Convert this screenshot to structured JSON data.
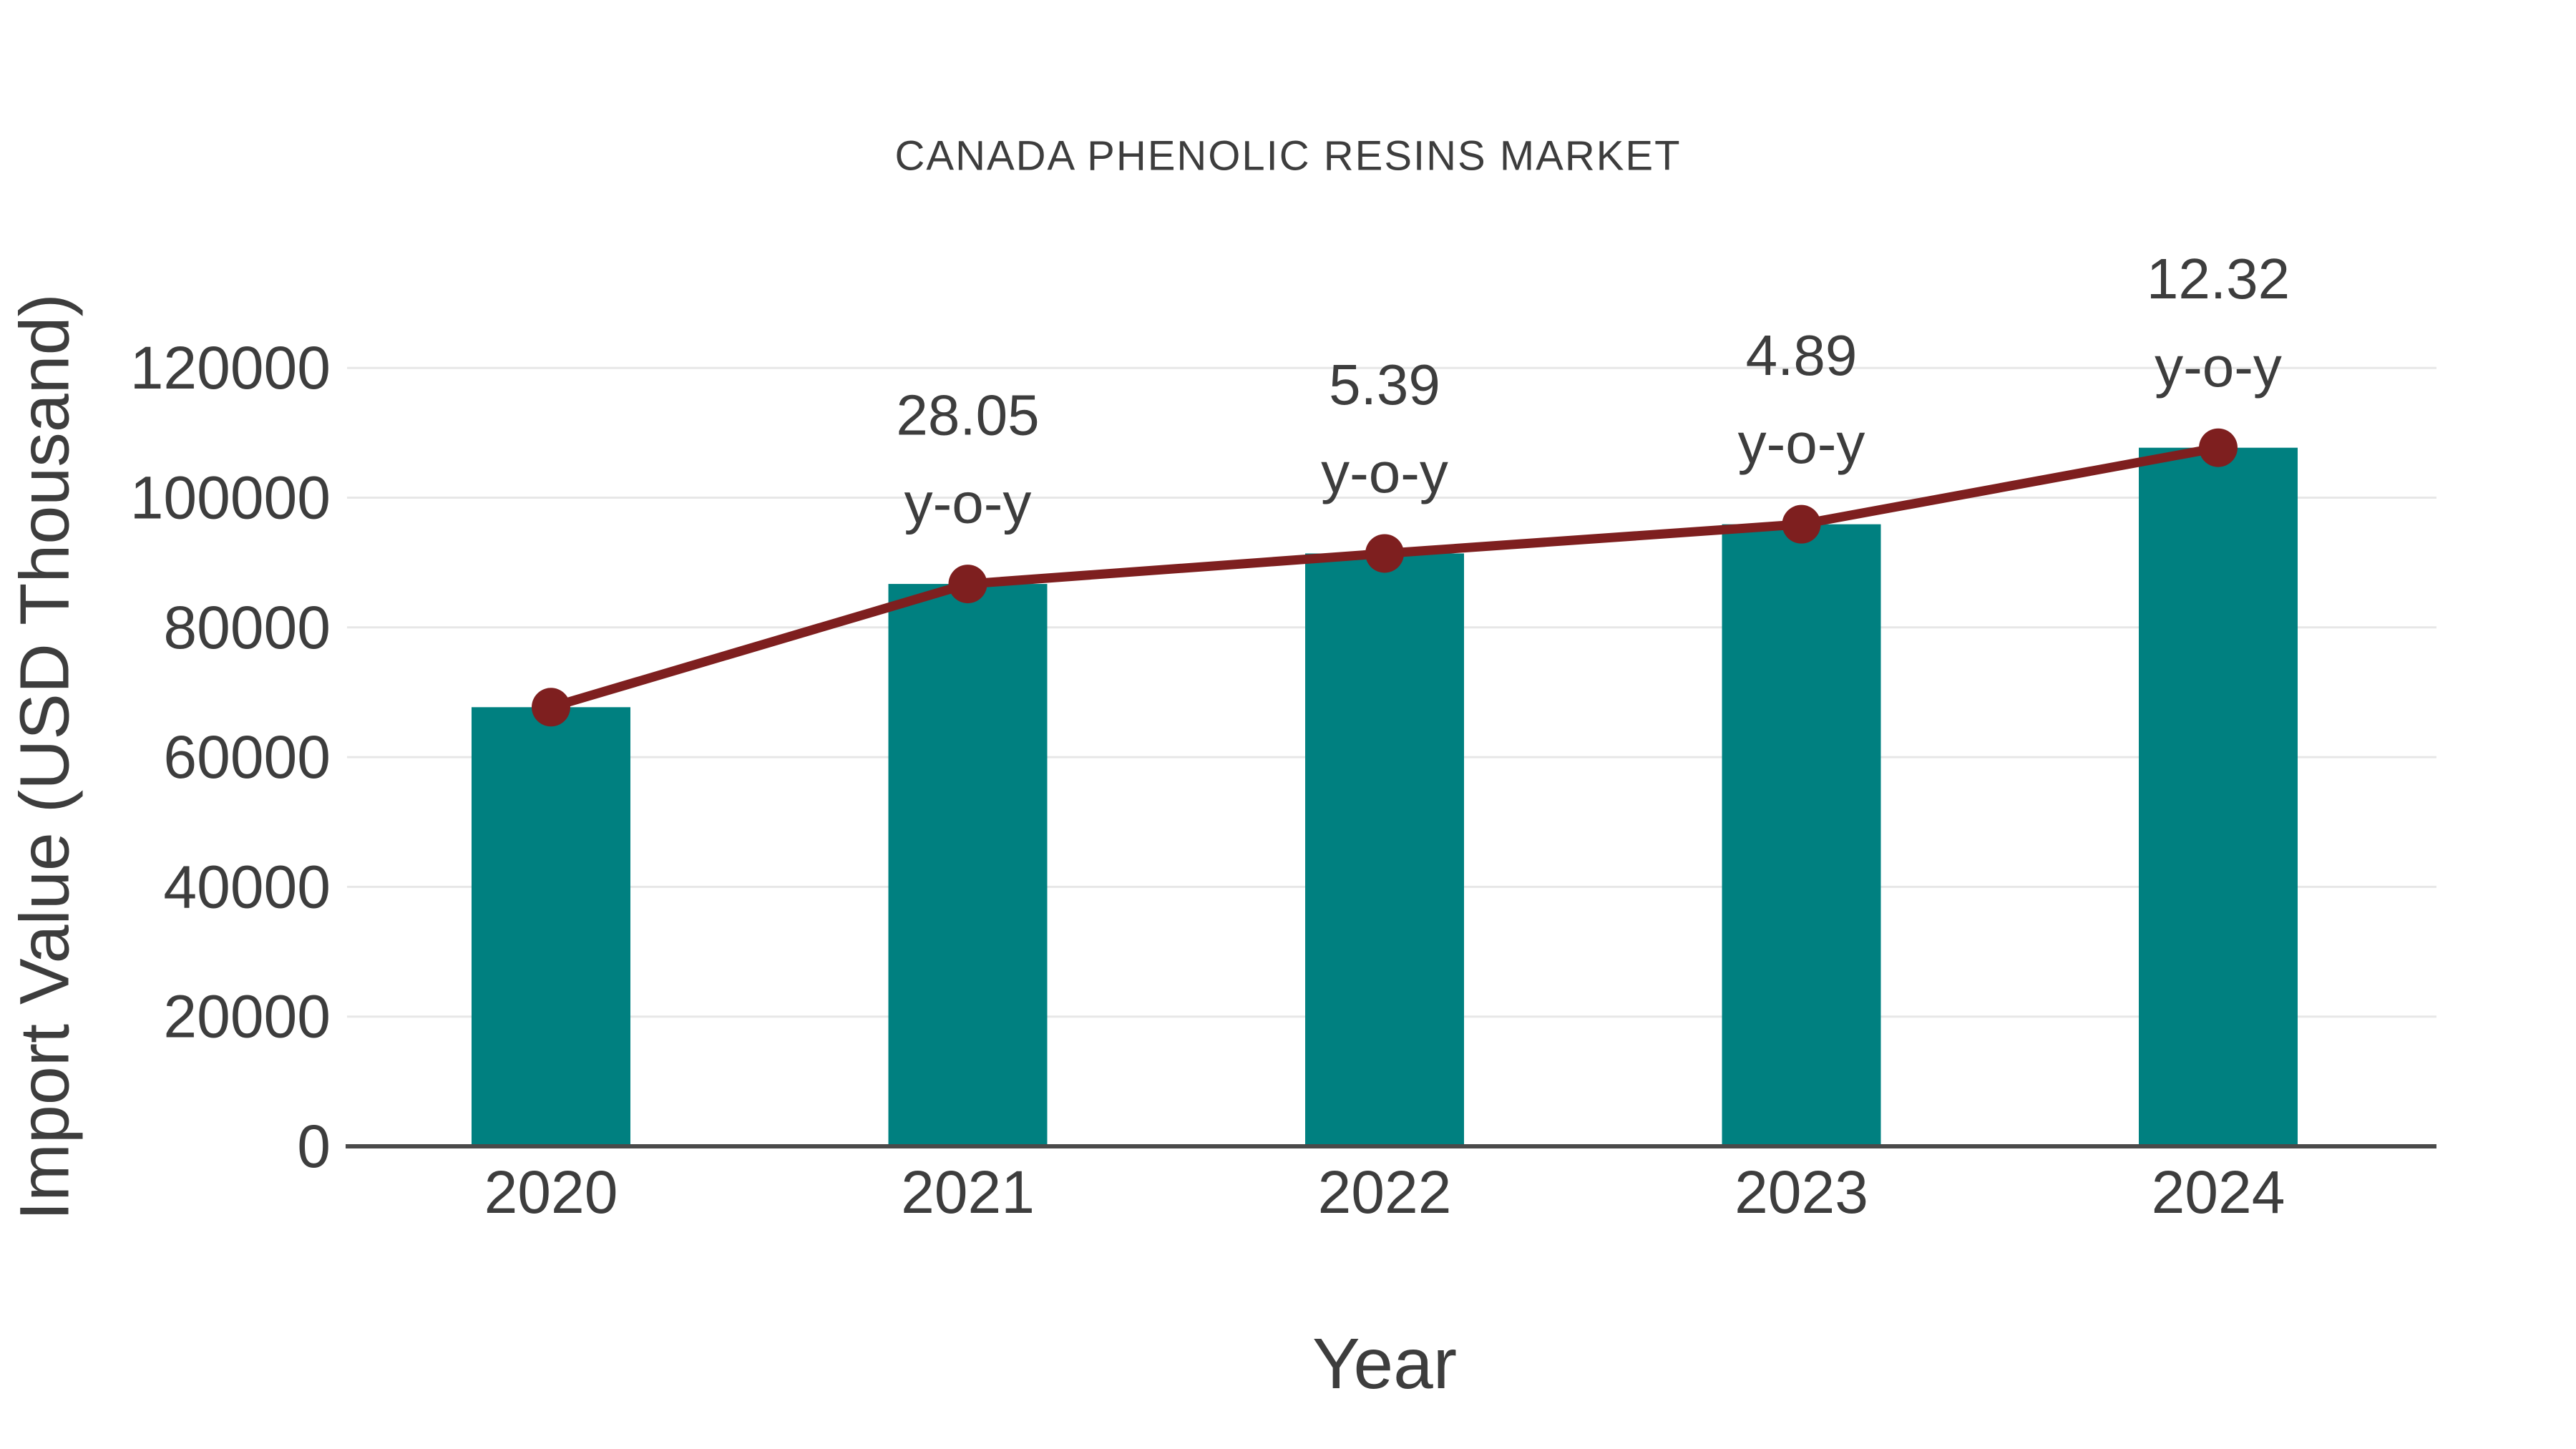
{
  "title": "CANADA PHENOLIC RESINS MARKET",
  "x_axis": {
    "label": "Year",
    "categories": [
      "2020",
      "2021",
      "2022",
      "2023",
      "2024"
    ]
  },
  "y_axis": {
    "label": "Import Value (USD Thousand)",
    "ticks": [
      0,
      20000,
      40000,
      60000,
      80000,
      100000,
      120000
    ]
  },
  "chart_data": {
    "type": "combo-bar-line",
    "title": "CANADA PHENOLIC RESINS MARKET",
    "xlabel": "Year",
    "ylabel": "Import Value (USD Thousand)",
    "categories": [
      "2020",
      "2021",
      "2022",
      "2023",
      "2024"
    ],
    "series": [
      {
        "name": "Import Value (USD Thousand)",
        "type": "bar",
        "values": [
          67700,
          86700,
          91400,
          95900,
          107700
        ]
      },
      {
        "name": "y-o-y growth",
        "type": "line",
        "values": [
          67700,
          86700,
          91400,
          95900,
          107700
        ],
        "point_labels": [
          null,
          "28.05",
          "5.39",
          "4.89",
          "12.32"
        ],
        "point_label_suffix": "y-o-y"
      }
    ],
    "ylim": [
      0,
      130000
    ],
    "grid": true,
    "legend": false
  },
  "colors": {
    "bar": "#008080",
    "line": "#7e1f1f",
    "grid": "#e7e7e7",
    "axis": "#4a4a4a",
    "text": "#3d3d3d"
  }
}
